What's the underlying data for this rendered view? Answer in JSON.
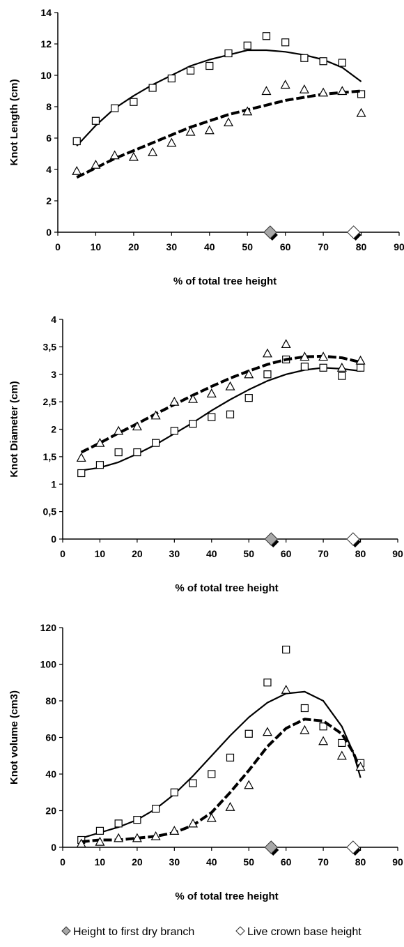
{
  "chart_data": [
    {
      "type": "scatter",
      "ylabel": "Knot Length (cm)",
      "xlabel": "% of total tree height",
      "xlim": [
        0,
        90
      ],
      "ylim": [
        0,
        14
      ],
      "x_ticks": [
        "0",
        "10",
        "20",
        "30",
        "40",
        "50",
        "60",
        "70",
        "80",
        "90"
      ],
      "y_ticks": [
        "0",
        "2",
        "4",
        "6",
        "8",
        "10",
        "12",
        "14"
      ],
      "grid": false,
      "series": [
        {
          "marker": "square",
          "line_style": "solid",
          "points": {
            "x": [
              5,
              10,
              15,
              20,
              25,
              30,
              35,
              40,
              45,
              50,
              55,
              60,
              65,
              70,
              75,
              80
            ],
            "y": [
              5.8,
              7.1,
              7.9,
              8.3,
              9.2,
              9.8,
              10.3,
              10.6,
              11.4,
              11.9,
              12.5,
              12.1,
              11.1,
              10.9,
              10.8,
              8.8
            ]
          },
          "fit": {
            "x": [
              5,
              10,
              15,
              20,
              25,
              30,
              35,
              40,
              45,
              50,
              55,
              60,
              65,
              70,
              75,
              80
            ],
            "y": [
              5.5,
              6.8,
              7.9,
              8.7,
              9.4,
              10.0,
              10.6,
              11.0,
              11.3,
              11.6,
              11.6,
              11.5,
              11.3,
              11.0,
              10.5,
              9.6
            ]
          }
        },
        {
          "marker": "triangle",
          "line_style": "dashed",
          "points": {
            "x": [
              5,
              10,
              15,
              20,
              25,
              30,
              35,
              40,
              45,
              50,
              55,
              60,
              65,
              70,
              75,
              80
            ],
            "y": [
              3.9,
              4.3,
              4.9,
              4.8,
              5.1,
              5.7,
              6.4,
              6.5,
              7.0,
              7.7,
              9.0,
              9.4,
              9.1,
              8.9,
              9.0,
              7.6
            ]
          },
          "fit": {
            "x": [
              5,
              10,
              15,
              20,
              25,
              30,
              35,
              40,
              45,
              50,
              55,
              60,
              65,
              70,
              75,
              80
            ],
            "y": [
              3.5,
              4.1,
              4.7,
              5.2,
              5.7,
              6.2,
              6.7,
              7.1,
              7.5,
              7.8,
              8.1,
              8.4,
              8.6,
              8.8,
              8.9,
              9.0
            ]
          }
        }
      ],
      "markers_on_xaxis": [
        {
          "x": 56,
          "style": "gray-diamond"
        },
        {
          "x": 78,
          "style": "white-diamond"
        }
      ]
    },
    {
      "type": "scatter",
      "ylabel": "Knot Diameter (cm)",
      "xlabel": "% of total tree height",
      "xlim": [
        0,
        90
      ],
      "ylim": [
        0,
        4
      ],
      "x_ticks": [
        "0",
        "10",
        "20",
        "30",
        "40",
        "50",
        "60",
        "70",
        "80",
        "90"
      ],
      "y_ticks": [
        "0",
        "0,5",
        "1",
        "1,5",
        "2",
        "2,5",
        "3",
        "3,5",
        "4"
      ],
      "grid": false,
      "series": [
        {
          "marker": "square",
          "line_style": "solid",
          "points": {
            "x": [
              5,
              10,
              15,
              20,
              25,
              30,
              35,
              40,
              45,
              50,
              55,
              60,
              65,
              70,
              75,
              80
            ],
            "y": [
              1.2,
              1.35,
              1.58,
              1.58,
              1.75,
              1.97,
              2.1,
              2.22,
              2.27,
              2.57,
              3.0,
              3.27,
              3.14,
              3.12,
              2.97,
              3.12
            ]
          },
          "fit": {
            "x": [
              5,
              10,
              15,
              20,
              25,
              30,
              35,
              40,
              45,
              50,
              55,
              60,
              65,
              70,
              75,
              80
            ],
            "y": [
              1.25,
              1.3,
              1.4,
              1.55,
              1.72,
              1.92,
              2.12,
              2.34,
              2.54,
              2.72,
              2.88,
              3.0,
              3.08,
              3.12,
              3.1,
              3.06
            ]
          }
        },
        {
          "marker": "triangle",
          "line_style": "dashed",
          "points": {
            "x": [
              5,
              10,
              15,
              20,
              25,
              30,
              35,
              40,
              45,
              50,
              55,
              60,
              65,
              70,
              75,
              80
            ],
            "y": [
              1.48,
              1.75,
              1.97,
              2.05,
              2.25,
              2.5,
              2.55,
              2.65,
              2.78,
              3.0,
              3.38,
              3.55,
              3.32,
              3.32,
              3.12,
              3.25
            ]
          },
          "fit": {
            "x": [
              5,
              10,
              15,
              20,
              25,
              30,
              35,
              40,
              45,
              50,
              55,
              60,
              65,
              70,
              75,
              80
            ],
            "y": [
              1.58,
              1.75,
              1.93,
              2.1,
              2.28,
              2.45,
              2.62,
              2.78,
              2.93,
              3.06,
              3.18,
              3.27,
              3.32,
              3.33,
              3.3,
              3.22
            ]
          }
        }
      ],
      "markers_on_xaxis": [
        {
          "x": 56,
          "style": "gray-diamond"
        },
        {
          "x": 78,
          "style": "white-diamond"
        }
      ]
    },
    {
      "type": "scatter",
      "ylabel": "Knot volume (cm3)",
      "xlabel": "% of total tree height",
      "xlim": [
        0,
        90
      ],
      "ylim": [
        0,
        120
      ],
      "x_ticks": [
        "0",
        "10",
        "20",
        "30",
        "40",
        "50",
        "60",
        "70",
        "80",
        "90"
      ],
      "y_ticks": [
        "0",
        "20",
        "40",
        "60",
        "80",
        "100",
        "120"
      ],
      "grid": false,
      "series": [
        {
          "marker": "square",
          "line_style": "solid",
          "points": {
            "x": [
              5,
              10,
              15,
              20,
              25,
              30,
              35,
              40,
              45,
              50,
              55,
              60,
              65,
              70,
              75,
              80
            ],
            "y": [
              4,
              9,
              13,
              15,
              21,
              30,
              35,
              40,
              49,
              62,
              90,
              108,
              76,
              66,
              57,
              46
            ]
          },
          "fit": {
            "x": [
              5,
              10,
              15,
              20,
              25,
              30,
              35,
              40,
              45,
              50,
              55,
              60,
              65,
              70,
              75,
              78,
              80
            ],
            "y": [
              5,
              8,
              11,
              15,
              21,
              29,
              39,
              50,
              61,
              71,
              79,
              84,
              85,
              80,
              66,
              52,
              38
            ]
          }
        },
        {
          "marker": "triangle",
          "line_style": "dashed",
          "points": {
            "x": [
              5,
              10,
              15,
              20,
              25,
              30,
              35,
              40,
              45,
              50,
              55,
              60,
              65,
              70,
              75,
              80
            ],
            "y": [
              2,
              3,
              5,
              5,
              6,
              9,
              13,
              16,
              22,
              34,
              63,
              86,
              64,
              58,
              50,
              44
            ]
          },
          "fit": {
            "x": [
              5,
              10,
              15,
              20,
              25,
              30,
              35,
              40,
              45,
              50,
              55,
              60,
              65,
              70,
              75,
              78,
              80
            ],
            "y": [
              3,
              4,
              4,
              5,
              6,
              8,
              12,
              19,
              30,
              42,
              55,
              65,
              70,
              69,
              62,
              52,
              42
            ]
          }
        }
      ],
      "markers_on_xaxis": [
        {
          "x": 56,
          "style": "gray-diamond"
        },
        {
          "x": 78,
          "style": "white-diamond"
        }
      ]
    }
  ],
  "legend": {
    "items": [
      {
        "style": "gray-diamond",
        "label": "Height to first dry branch"
      },
      {
        "style": "white-diamond",
        "label": "Live crown base height"
      }
    ]
  }
}
